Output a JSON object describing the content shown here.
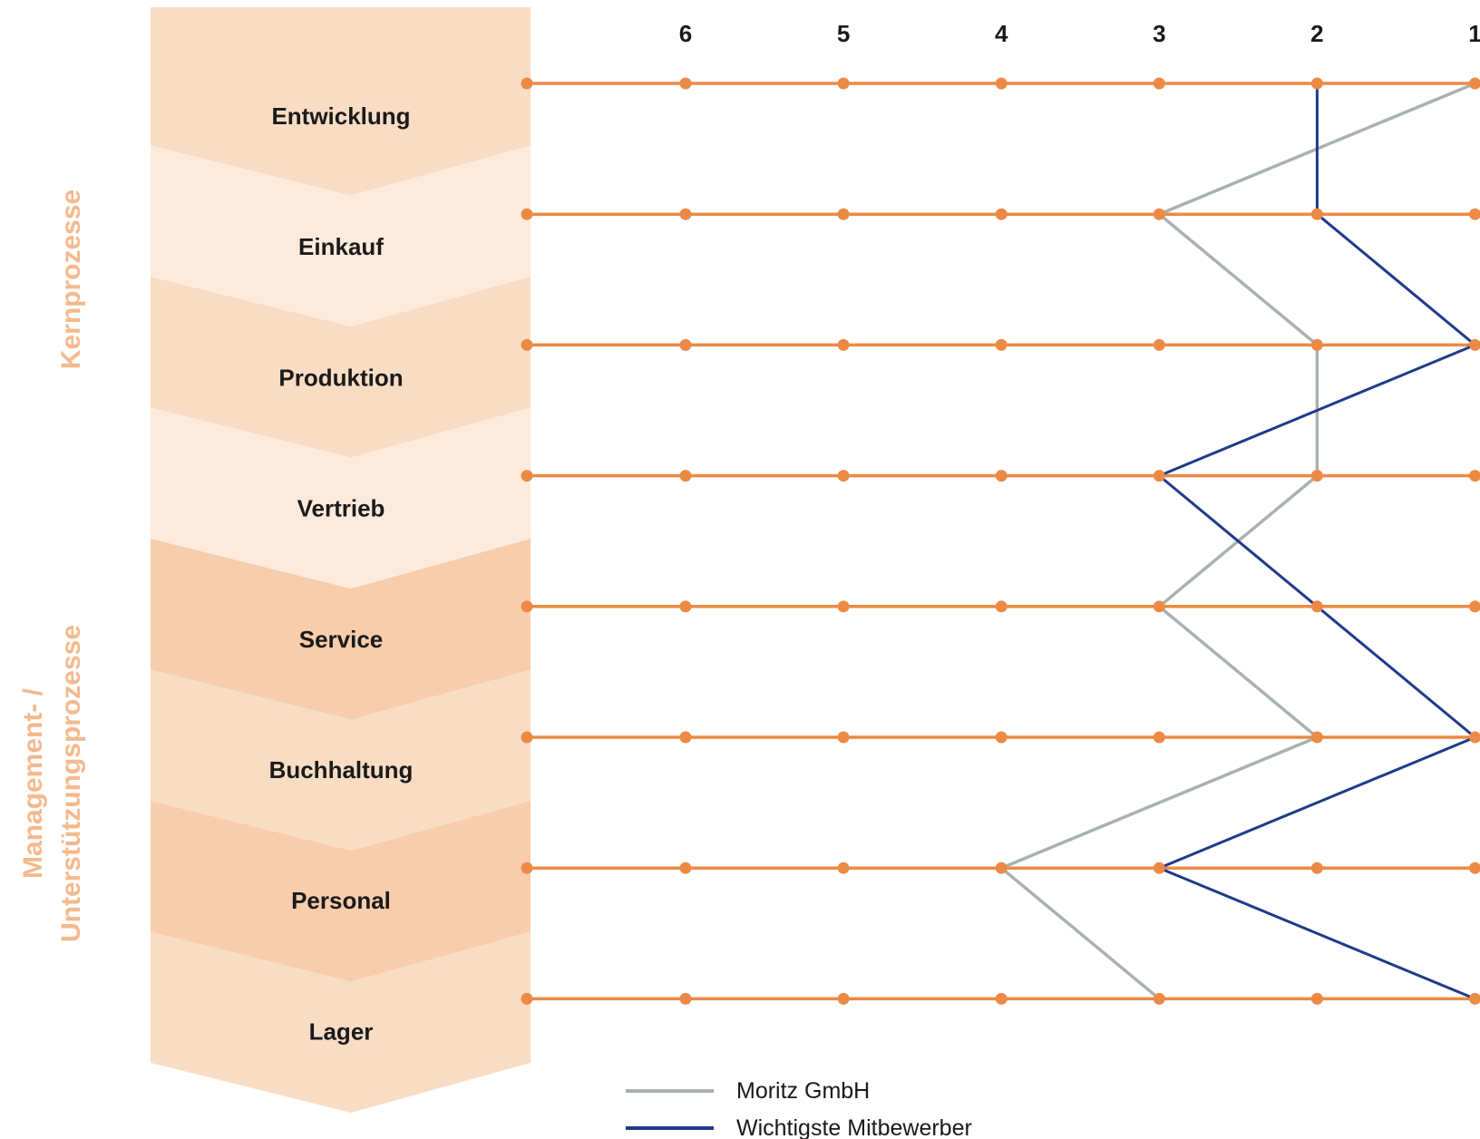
{
  "chart_data": {
    "type": "line",
    "columns": [
      "6",
      "5",
      "4",
      "3",
      "2",
      "1"
    ],
    "rows": [
      "Entwicklung",
      "Einkauf",
      "Produktion",
      "Vertrieb",
      "Service",
      "Buchhaltung",
      "Personal",
      "Lager"
    ],
    "groups": [
      {
        "label": "Kernprozesse",
        "rows": [
          "Entwicklung",
          "Einkauf",
          "Produktion",
          "Vertrieb"
        ]
      },
      {
        "label_line1": "Management- /",
        "label_line2": "Unterstützungsprozesse",
        "rows": [
          "Service",
          "Buchhaltung",
          "Personal",
          "Lager"
        ]
      }
    ],
    "series": [
      {
        "name": "Moritz GmbH",
        "color": "#a9b2ad",
        "values": [
          1,
          3,
          2,
          2,
          3,
          2,
          4,
          3
        ]
      },
      {
        "name": "Wichtigste Mitbewerber",
        "color": "#1f3a8a",
        "values": [
          2,
          2,
          1,
          3,
          2,
          1,
          3,
          1
        ]
      }
    ],
    "colors": {
      "grid_line": "#ec8a45",
      "chevron_dark": "#f7cdac",
      "chevron_mid": "#f9dcc4",
      "chevron_light": "#fcebdd",
      "group_label": "#f4b98e"
    }
  }
}
